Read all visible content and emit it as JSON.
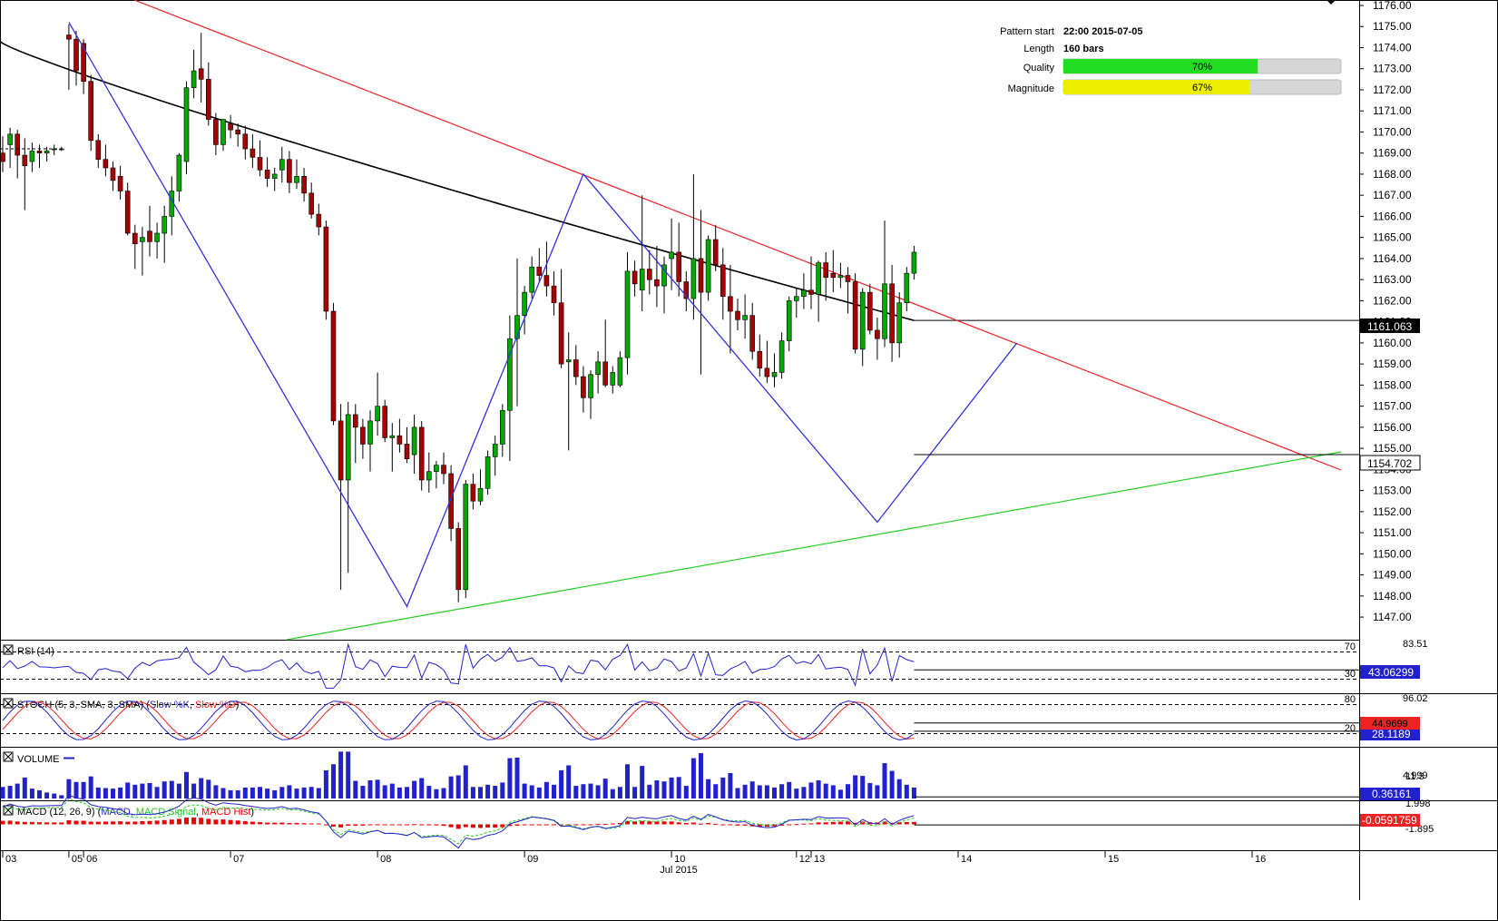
{
  "chart_data": {
    "type": "candlestick",
    "symbol_info": {
      "pattern_start_label": "Pattern start",
      "pattern_start_value": "22:00 2015-07-05",
      "length_label": "Length",
      "length_value": "160 bars",
      "quality_label": "Quality",
      "quality_value": "70%",
      "quality_fraction": 0.7,
      "magnitude_label": "Magnitude",
      "magnitude_value": "67%",
      "magnitude_fraction": 0.67,
      "quality_color": "#22dd22",
      "magnitude_color": "#eeee00"
    },
    "price_axis": {
      "min": 1146.4,
      "max": 1176.0,
      "ticks": [
        "1176.00",
        "1175.00",
        "1174.00",
        "1173.00",
        "1172.00",
        "1171.00",
        "1170.00",
        "1169.00",
        "1168.00",
        "1167.00",
        "1166.00",
        "1165.00",
        "1164.00",
        "1163.00",
        "1162.00",
        "1161.00",
        "1160.00",
        "1159.00",
        "1158.00",
        "1157.00",
        "1156.00",
        "1155.00",
        "1154.00",
        "1153.00",
        "1152.00",
        "1151.00",
        "1150.00",
        "1149.00",
        "1148.00",
        "1147.00"
      ]
    },
    "last_price": {
      "value": 1154.702,
      "label": "1154.702"
    },
    "ma": {
      "last_value": 1161.063,
      "label": "1161.063",
      "color": "#000000"
    },
    "x_axis": {
      "labels": [
        {
          "text": "03",
          "bar": 0
        },
        {
          "text": "05",
          "bar": 9
        },
        {
          "text": "06",
          "bar": 11
        },
        {
          "text": "07",
          "bar": 31
        },
        {
          "text": "08",
          "bar": 51
        },
        {
          "text": "09",
          "bar": 71
        },
        {
          "text": "10",
          "bar": 91
        },
        {
          "text": "12",
          "bar": 108
        },
        {
          "text": "13",
          "bar": 110
        },
        {
          "text": "14",
          "bar": 130
        },
        {
          "text": "15",
          "bar": 150
        },
        {
          "text": "16",
          "bar": 170
        }
      ],
      "month_label": "Jul 2015"
    },
    "candles_ohlc": [
      [
        1169.0,
        1169.8,
        1168.1,
        1168.6
      ],
      [
        1169.4,
        1170.2,
        1168.3,
        1169.9
      ],
      [
        1169.9,
        1170.1,
        1167.8,
        1168.9
      ],
      [
        1168.9,
        1169.7,
        1166.3,
        1168.4
      ],
      [
        1168.6,
        1169.5,
        1168.1,
        1169.1
      ],
      [
        1169.1,
        1169.4,
        1168.3,
        1169.0
      ],
      [
        1169.0,
        1169.3,
        1168.6,
        1169.1
      ],
      [
        1169.2,
        1169.4,
        1168.9,
        1169.2
      ],
      [
        1169.2,
        1169.3,
        1169.1,
        1169.2
      ],
      [
        1174.6,
        1175.1,
        1172.0,
        1174.4
      ],
      [
        1174.4,
        1174.8,
        1172.2,
        1172.9
      ],
      [
        1174.2,
        1174.4,
        1171.8,
        1172.4
      ],
      [
        1172.4,
        1172.7,
        1169.1,
        1169.6
      ],
      [
        1169.6,
        1169.9,
        1168.3,
        1168.7
      ],
      [
        1168.7,
        1169.4,
        1167.9,
        1168.3
      ],
      [
        1168.3,
        1168.6,
        1167.2,
        1167.7
      ],
      [
        1167.9,
        1168.4,
        1166.8,
        1167.2
      ],
      [
        1167.2,
        1167.6,
        1165.1,
        1165.2
      ],
      [
        1165.2,
        1165.6,
        1163.5,
        1164.7
      ],
      [
        1164.8,
        1165.5,
        1163.2,
        1165.0
      ],
      [
        1165.3,
        1166.5,
        1164.1,
        1164.8
      ],
      [
        1164.8,
        1165.7,
        1164.0,
        1165.2
      ],
      [
        1165.2,
        1166.5,
        1163.8,
        1166.0
      ],
      [
        1166.0,
        1167.9,
        1165.1,
        1167.2
      ],
      [
        1167.2,
        1169.0,
        1166.7,
        1168.9
      ],
      [
        1168.6,
        1172.4,
        1168.0,
        1172.1
      ],
      [
        1172.1,
        1173.9,
        1171.6,
        1172.9
      ],
      [
        1173.0,
        1174.7,
        1171.4,
        1172.5
      ],
      [
        1172.5,
        1173.3,
        1170.3,
        1170.6
      ],
      [
        1170.6,
        1170.9,
        1168.9,
        1169.4
      ],
      [
        1169.4,
        1170.6,
        1169.1,
        1170.6
      ],
      [
        1170.4,
        1170.8,
        1169.7,
        1170.1
      ],
      [
        1170.1,
        1170.4,
        1169.3,
        1169.9
      ],
      [
        1169.9,
        1170.3,
        1168.7,
        1169.2
      ],
      [
        1169.2,
        1169.9,
        1168.3,
        1168.8
      ],
      [
        1168.8,
        1169.6,
        1167.9,
        1168.2
      ],
      [
        1168.2,
        1168.8,
        1167.4,
        1167.8
      ],
      [
        1167.8,
        1168.3,
        1167.2,
        1168.0
      ],
      [
        1168.2,
        1169.3,
        1167.6,
        1168.7
      ],
      [
        1168.7,
        1169.1,
        1167.1,
        1167.6
      ],
      [
        1167.6,
        1168.7,
        1167.3,
        1167.9
      ],
      [
        1167.9,
        1168.3,
        1166.7,
        1167.1
      ],
      [
        1167.1,
        1167.6,
        1165.9,
        1166.1
      ],
      [
        1166.1,
        1166.6,
        1165.1,
        1165.5
      ],
      [
        1165.5,
        1165.8,
        1161.1,
        1161.5
      ],
      [
        1161.5,
        1161.9,
        1156.1,
        1156.3
      ],
      [
        1156.3,
        1157.1,
        1148.3,
        1153.5
      ],
      [
        1153.5,
        1157.2,
        1149.1,
        1156.6
      ],
      [
        1156.6,
        1157.1,
        1154.3,
        1156.0
      ],
      [
        1156.0,
        1156.4,
        1154.5,
        1155.2
      ],
      [
        1155.2,
        1156.8,
        1153.9,
        1156.3
      ],
      [
        1156.3,
        1158.6,
        1155.6,
        1157.0
      ],
      [
        1157.0,
        1157.3,
        1155.3,
        1155.5
      ],
      [
        1155.5,
        1156.2,
        1153.9,
        1155.6
      ],
      [
        1155.6,
        1156.4,
        1154.8,
        1155.2
      ],
      [
        1155.2,
        1156.0,
        1154.3,
        1154.5
      ],
      [
        1154.7,
        1156.6,
        1153.8,
        1156.0
      ],
      [
        1156.0,
        1156.3,
        1153.0,
        1153.5
      ],
      [
        1153.5,
        1154.8,
        1152.9,
        1153.9
      ],
      [
        1153.9,
        1154.4,
        1153.1,
        1154.2
      ],
      [
        1154.2,
        1154.8,
        1153.3,
        1153.8
      ],
      [
        1153.8,
        1154.2,
        1150.6,
        1151.2
      ],
      [
        1151.2,
        1151.5,
        1147.7,
        1148.3
      ],
      [
        1148.3,
        1153.5,
        1147.9,
        1153.3
      ],
      [
        1153.3,
        1153.8,
        1152.1,
        1152.5
      ],
      [
        1152.5,
        1154.0,
        1152.3,
        1153.1
      ],
      [
        1153.1,
        1154.9,
        1152.8,
        1154.6
      ],
      [
        1154.6,
        1155.6,
        1153.7,
        1155.2
      ],
      [
        1155.2,
        1157.1,
        1154.6,
        1156.8
      ],
      [
        1156.8,
        1161.3,
        1154.4,
        1160.2
      ],
      [
        1160.2,
        1164.0,
        1157.0,
        1161.3
      ],
      [
        1161.3,
        1162.7,
        1160.4,
        1162.4
      ],
      [
        1162.4,
        1164.1,
        1162.1,
        1163.6
      ],
      [
        1163.6,
        1164.5,
        1162.9,
        1163.2
      ],
      [
        1163.2,
        1164.8,
        1162.2,
        1162.7
      ],
      [
        1162.7,
        1163.4,
        1161.3,
        1161.9
      ],
      [
        1161.9,
        1163.5,
        1158.8,
        1159.0
      ],
      [
        1159.1,
        1160.5,
        1154.9,
        1159.2
      ],
      [
        1159.2,
        1159.9,
        1158.0,
        1158.4
      ],
      [
        1158.4,
        1158.9,
        1156.7,
        1157.4
      ],
      [
        1157.4,
        1158.7,
        1156.4,
        1158.5
      ],
      [
        1158.5,
        1159.6,
        1157.6,
        1159.1
      ],
      [
        1159.1,
        1161.1,
        1157.9,
        1158.0
      ],
      [
        1158.0,
        1158.9,
        1157.6,
        1158.6
      ],
      [
        1158.0,
        1159.6,
        1157.9,
        1159.3
      ],
      [
        1159.3,
        1164.3,
        1158.5,
        1163.4
      ],
      [
        1163.4,
        1163.9,
        1162.2,
        1162.8
      ],
      [
        1162.5,
        1167.0,
        1161.5,
        1163.5
      ],
      [
        1163.5,
        1164.4,
        1162.3,
        1163.0
      ],
      [
        1163.0,
        1164.6,
        1161.7,
        1162.7
      ],
      [
        1162.7,
        1164.1,
        1161.4,
        1163.7
      ],
      [
        1164.0,
        1165.9,
        1162.5,
        1164.3
      ],
      [
        1164.3,
        1165.7,
        1162.2,
        1162.9
      ],
      [
        1162.9,
        1163.4,
        1161.5,
        1162.1
      ],
      [
        1162.1,
        1168.0,
        1161.1,
        1164.0
      ],
      [
        1164.0,
        1166.3,
        1158.5,
        1162.4
      ],
      [
        1162.4,
        1165.1,
        1162.0,
        1164.9
      ],
      [
        1164.9,
        1165.6,
        1163.4,
        1163.7
      ],
      [
        1163.7,
        1164.5,
        1161.1,
        1162.2
      ],
      [
        1162.2,
        1163.7,
        1159.5,
        1161.5
      ],
      [
        1161.5,
        1162.1,
        1160.6,
        1161.1
      ],
      [
        1161.1,
        1162.3,
        1160.2,
        1161.3
      ],
      [
        1161.3,
        1161.9,
        1159.2,
        1159.6
      ],
      [
        1159.6,
        1160.4,
        1158.4,
        1158.8
      ],
      [
        1158.8,
        1160.1,
        1158.1,
        1158.4
      ],
      [
        1158.4,
        1159.5,
        1157.9,
        1158.6
      ],
      [
        1158.6,
        1160.5,
        1158.3,
        1160.1
      ],
      [
        1160.1,
        1162.2,
        1159.6,
        1162.0
      ],
      [
        1162.0,
        1162.6,
        1161.2,
        1162.2
      ],
      [
        1162.2,
        1163.3,
        1161.6,
        1162.5
      ],
      [
        1162.5,
        1164.1,
        1161.6,
        1162.3
      ],
      [
        1162.3,
        1163.9,
        1161.0,
        1163.8
      ],
      [
        1163.8,
        1164.3,
        1162.0,
        1163.1
      ],
      [
        1163.3,
        1164.4,
        1162.4,
        1163.1
      ],
      [
        1163.1,
        1163.8,
        1162.6,
        1163.2
      ],
      [
        1163.2,
        1163.6,
        1161.4,
        1162.9
      ],
      [
        1162.9,
        1163.3,
        1159.5,
        1159.7
      ],
      [
        1159.7,
        1162.6,
        1158.9,
        1162.4
      ],
      [
        1162.4,
        1162.8,
        1160.4,
        1160.6
      ],
      [
        1160.6,
        1161.2,
        1159.2,
        1160.2
      ],
      [
        1160.2,
        1165.8,
        1159.8,
        1162.8
      ],
      [
        1162.8,
        1163.7,
        1159.1,
        1160.0
      ],
      [
        1160.0,
        1162.4,
        1159.3,
        1161.9
      ],
      [
        1161.9,
        1163.6,
        1161.5,
        1163.3
      ],
      [
        1163.3,
        1164.6,
        1163.0,
        1164.3
      ]
    ],
    "rsi": {
      "title": "RSI (14)",
      "levels": [
        "70",
        "30"
      ],
      "max_label": "83.51",
      "last_label": "43.06299",
      "last_value": 43.06299,
      "ylim": [
        10,
        85
      ]
    },
    "stoch": {
      "title": "STOCH (5, 3, SMA, 3, SMA)",
      "legend_k": "Slow %K",
      "legend_d": "Slow %D",
      "levels": [
        "80",
        "20"
      ],
      "max_label": "96.02",
      "last_k_label": "44.9699",
      "last_d_label": "28.1189",
      "last_k": 44.9699,
      "last_d": 28.1189,
      "ylim": [
        0,
        100
      ]
    },
    "volume": {
      "title": "VOLUME",
      "ticks": [
        "11.3",
        "4.999"
      ],
      "last_label": "0.36161",
      "last_value": 0.36161,
      "ylim": [
        0,
        11.5
      ]
    },
    "macd": {
      "title": "MACD (12, 26, 9)",
      "legend_macd": "MACD",
      "legend_signal": "MACD Signal",
      "legend_hist": "MACD Hist",
      "ticks": [
        "1.998",
        "-1.895"
      ],
      "last_label": "-0.0591759",
      "last_value": -0.0591759,
      "ylim": [
        -2.6,
        2.3
      ]
    },
    "colors": {
      "bull": "#00a800",
      "bear": "#a80000",
      "zigzag": "#3333dd",
      "upper_trend": "#ee2222",
      "lower_trend": "#22cc22",
      "ma": "#000000",
      "rsi_line": "#2222cc",
      "stoch_k": "#2222cc",
      "stoch_d": "#ee2222",
      "volume_bar": "#2222cc",
      "macd_line": "#2222cc",
      "macd_signal": "#22cc22",
      "macd_hist": "#ee0000"
    }
  }
}
